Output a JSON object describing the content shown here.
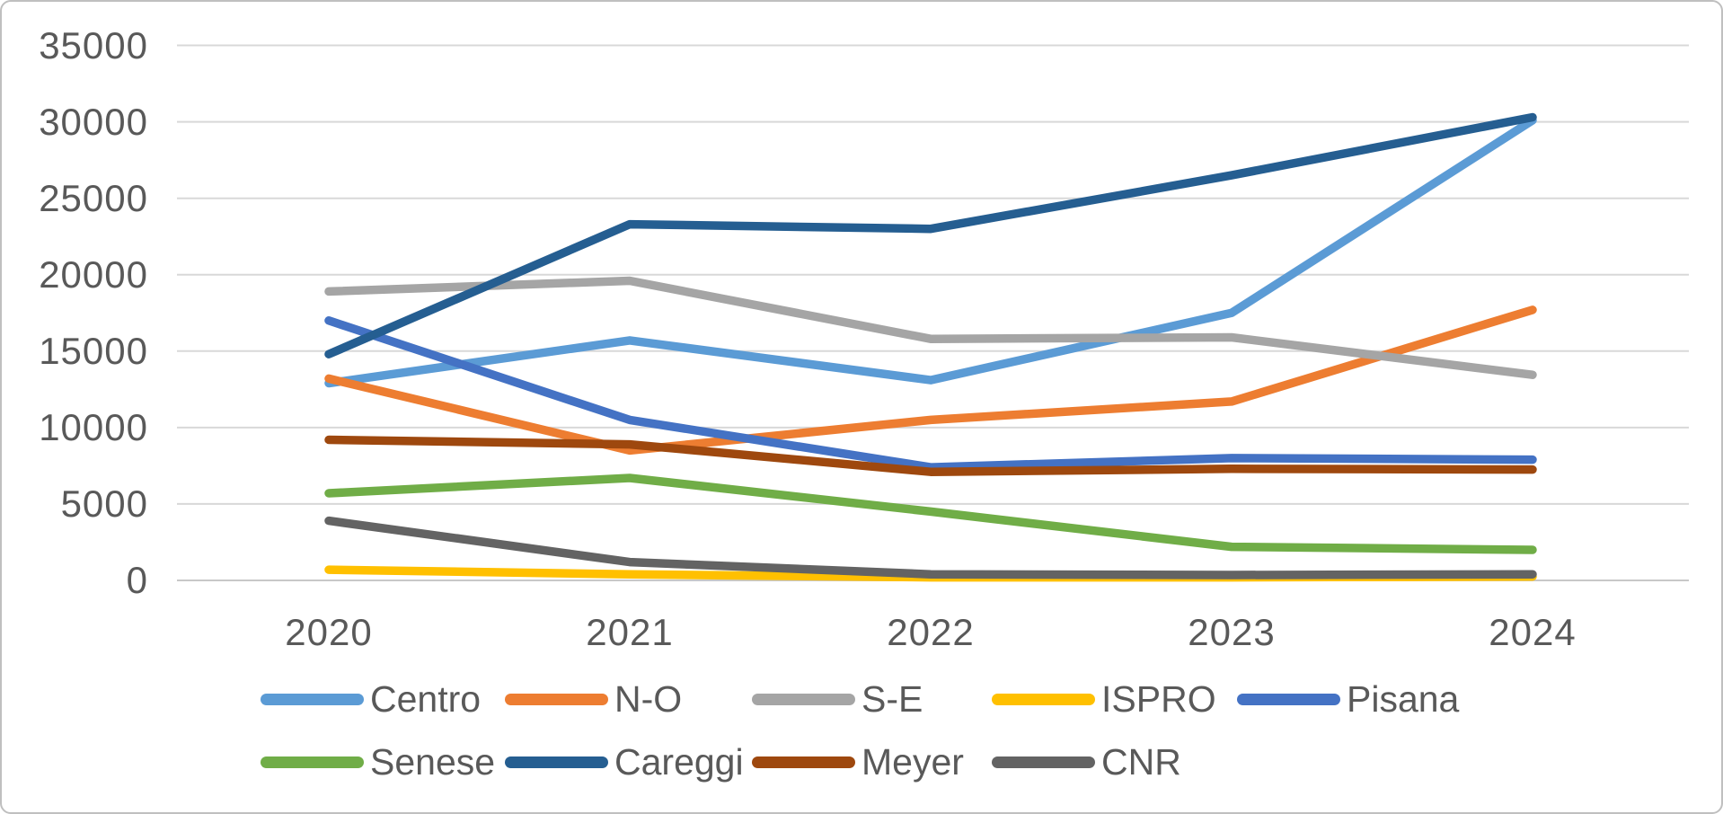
{
  "frame": {
    "background": "#FFFFFF",
    "border_color": "#BFBFBF"
  },
  "chart_data": {
    "type": "line",
    "title": "",
    "xlabel": "",
    "ylabel": "",
    "categories": [
      "2020",
      "2021",
      "2022",
      "2023",
      "2024"
    ],
    "series": [
      {
        "name": "Centro",
        "color": "#5B9BD5",
        "values": [
          12900,
          15700,
          13100,
          17500,
          30100
        ]
      },
      {
        "name": "N-O",
        "color": "#ED7D31",
        "values": [
          13200,
          8500,
          10500,
          11700,
          17700
        ]
      },
      {
        "name": "S-E",
        "color": "#A5A5A5",
        "values": [
          18900,
          19600,
          15800,
          15900,
          13450
        ]
      },
      {
        "name": "ISPRO",
        "color": "#FFC000",
        "values": [
          700,
          400,
          200,
          200,
          250
        ]
      },
      {
        "name": "Pisana",
        "color": "#4472C4",
        "values": [
          17000,
          10500,
          7400,
          8000,
          7900
        ]
      },
      {
        "name": "Senese",
        "color": "#70AD47",
        "values": [
          5700,
          6700,
          4500,
          2200,
          2000
        ]
      },
      {
        "name": "Careggi",
        "color": "#255E91",
        "values": [
          14800,
          23300,
          23000,
          26500,
          30300
        ]
      },
      {
        "name": "Meyer",
        "color": "#9E480E",
        "values": [
          9200,
          8900,
          7100,
          7300,
          7250
        ]
      },
      {
        "name": "CNR",
        "color": "#636363",
        "values": [
          3900,
          1200,
          400,
          350,
          400
        ]
      }
    ],
    "ylim": [
      0,
      35000
    ],
    "ytick_interval": 5000,
    "ytick_labels": [
      "0",
      "5000",
      "10000",
      "15000",
      "20000",
      "25000",
      "30000",
      "35000"
    ],
    "grid": true,
    "gridline_color": "#D8D8D8",
    "axis_text_color": "#595959",
    "legend_position": "bottom",
    "legend_rows": [
      [
        "Centro",
        "N-O",
        "S-E",
        "ISPRO",
        "Pisana"
      ],
      [
        "Senese",
        "Careggi",
        "Meyer",
        "CNR"
      ]
    ]
  }
}
